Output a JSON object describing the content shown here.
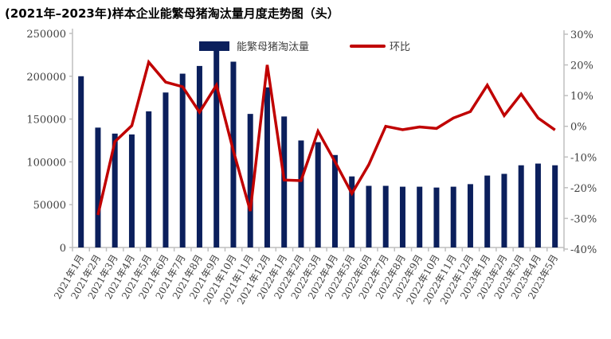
{
  "chart_data": {
    "type": "bar+line",
    "title": "(2021年–2023年)样本企业能繁母猪淘汰量月度走势图（头）",
    "categories": [
      "2021年1月",
      "2021年2月",
      "2021年3月",
      "2021年4月",
      "2021年5月",
      "2021年6月",
      "2021年7月",
      "2021年8月",
      "2021年9月",
      "2021年10月",
      "2021年11月",
      "2021年12月",
      "2022年1月",
      "2022年2月",
      "2022年3月",
      "2022年4月",
      "2022年5月",
      "2022年6月",
      "2022年7月",
      "2022年8月",
      "2022年9月",
      "2022年10月",
      "2022年11月",
      "2022年12月",
      "2023年1月",
      "2023年2月",
      "2023年3月",
      "2023年4月",
      "2023年5月"
    ],
    "series": [
      {
        "name": "能繁母猪淘汰量",
        "type": "bar",
        "axis": "left",
        "color": "#0b1f5c",
        "values": [
          200000,
          140000,
          133000,
          132000,
          159000,
          181000,
          203000,
          212000,
          235000,
          217000,
          156000,
          187000,
          153000,
          125000,
          123000,
          108000,
          83000,
          72000,
          72000,
          71000,
          71000,
          70000,
          71000,
          74000,
          84000,
          86000,
          96000,
          98000,
          96000
        ]
      },
      {
        "name": "环比",
        "type": "line",
        "axis": "right",
        "color": "#c00000",
        "values": [
          null,
          -28.9,
          -5.0,
          0.2,
          20.9,
          14.4,
          12.9,
          4.6,
          13.4,
          -8.0,
          -27.6,
          20.0,
          -17.5,
          -17.7,
          -1.6,
          -11.5,
          -21.9,
          -12.5,
          0.0,
          -1.1,
          -0.2,
          -0.7,
          2.7,
          4.8,
          13.4,
          3.5,
          10.5,
          2.7,
          -1.2
        ]
      }
    ],
    "left_axis": {
      "ylim": [
        0,
        250000
      ],
      "ticks": [
        "0",
        "50000",
        "100000",
        "150000",
        "200000",
        "250000"
      ]
    },
    "right_axis": {
      "ylim": [
        -40,
        30
      ],
      "ticks": [
        "-40%",
        "-30%",
        "-20%",
        "-10%",
        "0%",
        "10%",
        "20%",
        "30%"
      ]
    },
    "legend": {
      "placement": "top-center",
      "items": [
        "能繁母猪淘汰量",
        "环比"
      ]
    },
    "grid": false
  }
}
